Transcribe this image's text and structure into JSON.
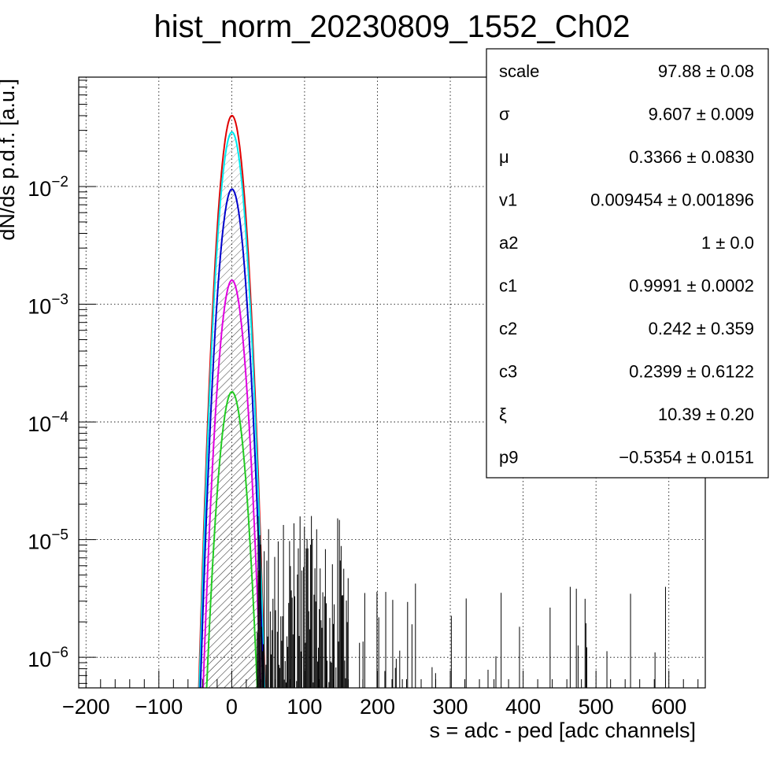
{
  "chart_data": {
    "type": "histogram",
    "title": "hist_norm_20230809_1552_Ch02",
    "xlabel": "s = adc - ped [adc channels]",
    "ylabel": "dN/ds p.d.f. [a.u.]",
    "xlim": [
      -210,
      650
    ],
    "ylim": [
      5.5e-07,
      0.085
    ],
    "yscale": "log",
    "grid": true,
    "x_ticks": [
      -200,
      -100,
      0,
      100,
      200,
      300,
      400,
      500,
      600
    ],
    "x_tick_labels": [
      "−200",
      "−100",
      "0",
      "100",
      "200",
      "300",
      "400",
      "500",
      "600"
    ],
    "y_ticks": [
      {
        "value": 0.01,
        "base": "10",
        "exp": "−2"
      },
      {
        "value": 0.001,
        "base": "10",
        "exp": "−3"
      },
      {
        "value": 0.0001,
        "base": "10",
        "exp": "−4"
      },
      {
        "value": 1e-05,
        "base": "10",
        "exp": "−5"
      },
      {
        "value": 1e-06,
        "base": "10",
        "exp": "−6"
      }
    ],
    "series": [
      {
        "color": "#e00000",
        "peak": 0.04,
        "mu": 0.34,
        "sigma": 9.6,
        "hatch": false
      },
      {
        "color": "#00e8ee",
        "peak": 0.029,
        "mu": 0.34,
        "sigma": 9.6,
        "hatch": true
      },
      {
        "color": "#0000cc",
        "peak": 0.0095,
        "mu": 0.34,
        "sigma": 9.8,
        "hatch": true
      },
      {
        "color": "#e000e0",
        "peak": 0.0016,
        "mu": 0.34,
        "sigma": 9.9,
        "hatch": true
      },
      {
        "color": "#22cc22",
        "peak": 0.00018,
        "mu": 0.34,
        "sigma": 10.2,
        "hatch": true
      }
    ],
    "tail_data": {
      "color": "#000000",
      "x_range": [
        35,
        650
      ],
      "level_min": 6e-07,
      "level_max": 1.6e-05
    },
    "stats_box": [
      {
        "name": "scale",
        "value": "97.88 ± 0.08"
      },
      {
        "name": "σ",
        "value": "9.607 ± 0.009"
      },
      {
        "name": "μ",
        "value": "0.3366 ± 0.0830"
      },
      {
        "name": "v1",
        "value": "0.009454 ± 0.001896"
      },
      {
        "name": "a2",
        "value": "1 ± 0.0"
      },
      {
        "name": "c1",
        "value": "0.9991 ± 0.0002"
      },
      {
        "name": "c2",
        "value": "0.242 ± 0.359"
      },
      {
        "name": "c3",
        "value": "0.2399 ± 0.6122"
      },
      {
        "name": "ξ",
        "value": "10.39 ± 0.20"
      },
      {
        "name": "p9",
        "value": "−0.5354 ± 0.0151"
      }
    ]
  }
}
